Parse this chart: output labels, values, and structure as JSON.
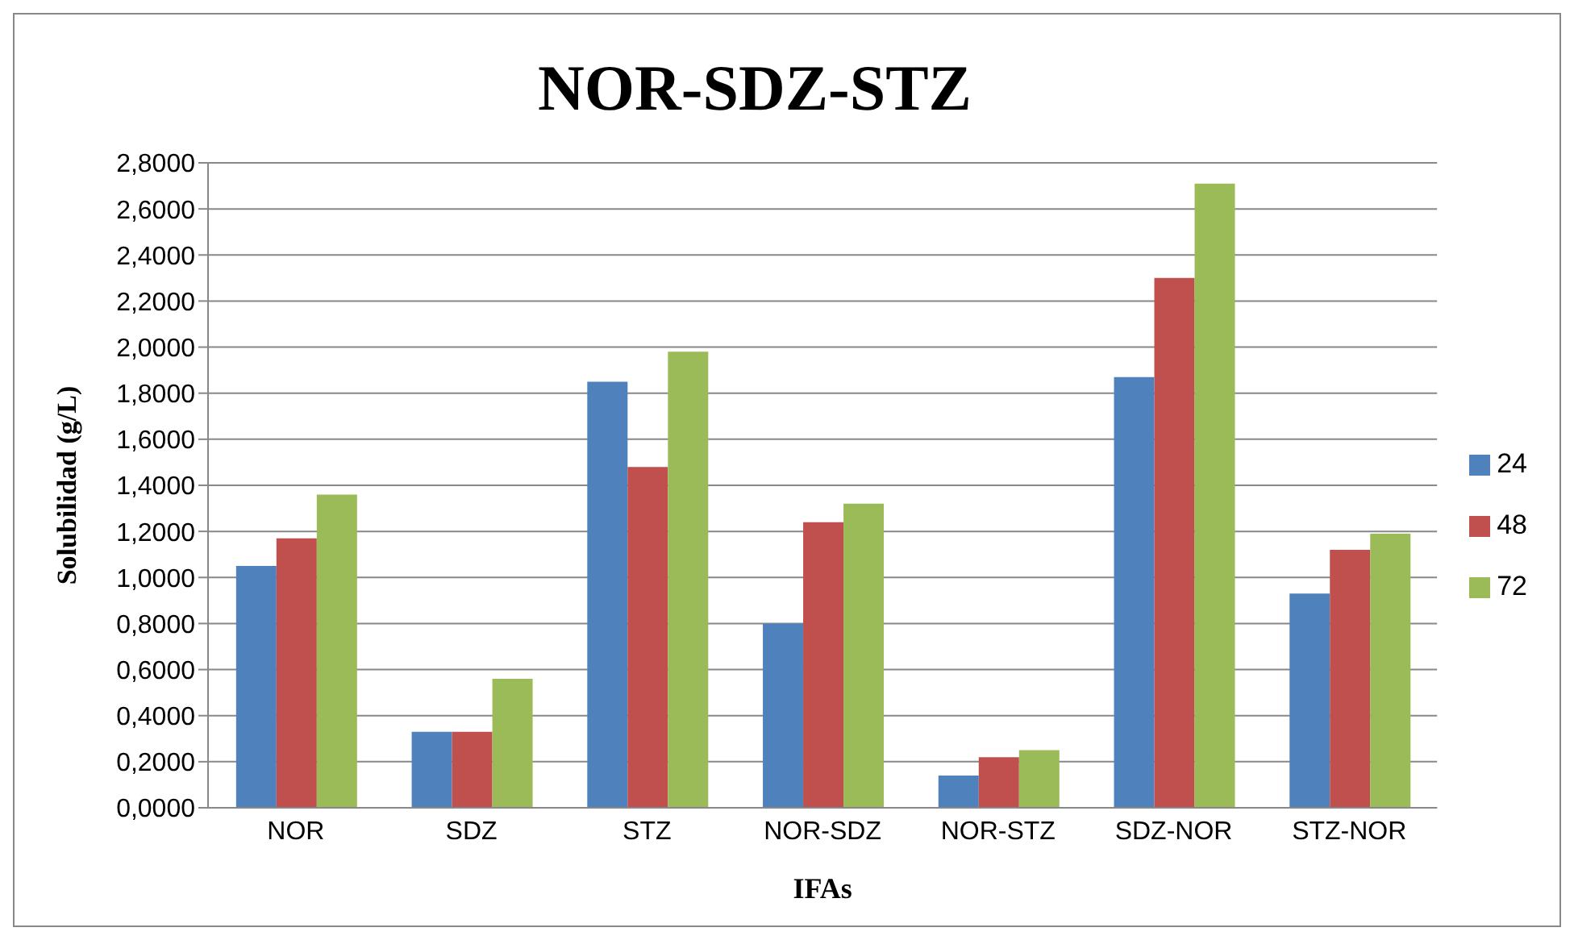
{
  "chart_data": {
    "type": "bar",
    "title": "NOR-SDZ-STZ",
    "xlabel": "IFAs",
    "ylabel": "Solubilidad  (g/L)",
    "categories": [
      "NOR",
      "SDZ",
      "STZ",
      "NOR-SDZ",
      "NOR-STZ",
      "SDZ-NOR",
      "STZ-NOR"
    ],
    "series": [
      {
        "name": "24",
        "color": "#4f81bd",
        "values": [
          1.05,
          0.33,
          1.85,
          0.8,
          0.14,
          1.87,
          0.93
        ]
      },
      {
        "name": "48",
        "color": "#c0504d",
        "values": [
          1.17,
          0.33,
          1.48,
          1.24,
          0.22,
          2.3,
          1.12
        ]
      },
      {
        "name": "72",
        "color": "#9bbb59",
        "values": [
          1.36,
          0.56,
          1.98,
          1.32,
          0.25,
          2.71,
          1.19
        ]
      }
    ],
    "ylim": [
      0,
      2.8
    ],
    "yticks": [
      {
        "value": 0,
        "label": "0,0000"
      },
      {
        "value": 0.2,
        "label": "0,2000"
      },
      {
        "value": 0.4,
        "label": "0,4000"
      },
      {
        "value": 0.6,
        "label": "0,6000"
      },
      {
        "value": 0.8,
        "label": "0,8000"
      },
      {
        "value": 1,
        "label": "1,0000"
      },
      {
        "value": 1.2,
        "label": "1,2000"
      },
      {
        "value": 1.4,
        "label": "1,4000"
      },
      {
        "value": 1.6,
        "label": "1,6000"
      },
      {
        "value": 1.8,
        "label": "1,8000"
      },
      {
        "value": 2,
        "label": "2,0000"
      },
      {
        "value": 2.2,
        "label": "2,2000"
      },
      {
        "value": 2.4,
        "label": "2,4000"
      },
      {
        "value": 2.6,
        "label": "2,6000"
      },
      {
        "value": 2.8,
        "label": "2,8000"
      }
    ],
    "grid": "y",
    "legend": "right"
  }
}
